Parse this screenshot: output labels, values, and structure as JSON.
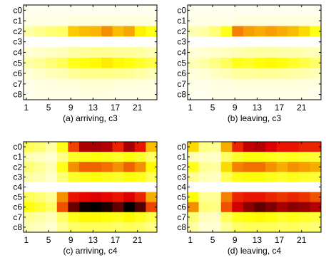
{
  "figure": {
    "colormap": "hot",
    "colormap_anchors": [
      "#000000",
      "#e60000",
      "#ffff00",
      "#ffffff"
    ]
  },
  "chart_data": [
    {
      "type": "heatmap",
      "title": "(a) arriving, c3",
      "rows": [
        "c0",
        "c1",
        "c2",
        "c3",
        "c4",
        "c5",
        "c6",
        "c7",
        "c8"
      ],
      "x_ticks": [
        "1",
        "5",
        "9",
        "13",
        "17",
        "21"
      ],
      "x_range": [
        1,
        24
      ],
      "values": [
        [
          0.02,
          0.02,
          0.02,
          0.02,
          0.02,
          0.02,
          0.02,
          0.02,
          0.02,
          0.02,
          0.02,
          0.02,
          0.02,
          0.02,
          0.02,
          0.02,
          0.02,
          0.02,
          0.02,
          0.02,
          0.02,
          0.02,
          0.02,
          0.02
        ],
        [
          0.03,
          0.03,
          0.03,
          0.03,
          0.03,
          0.03,
          0.03,
          0.03,
          0.04,
          0.04,
          0.04,
          0.04,
          0.04,
          0.04,
          0.04,
          0.04,
          0.04,
          0.04,
          0.04,
          0.04,
          0.04,
          0.04,
          0.04,
          0.04
        ],
        [
          0.12,
          0.12,
          0.15,
          0.15,
          0.18,
          0.18,
          0.2,
          0.2,
          0.4,
          0.4,
          0.42,
          0.42,
          0.43,
          0.43,
          0.48,
          0.48,
          0.42,
          0.42,
          0.45,
          0.45,
          0.35,
          0.35,
          0.3,
          0.3
        ],
        [
          0.0,
          0.0,
          0.0,
          0.0,
          0.0,
          0.0,
          0.0,
          0.0,
          0.0,
          0.0,
          0.0,
          0.0,
          0.0,
          0.0,
          0.0,
          0.0,
          0.0,
          0.0,
          0.0,
          0.0,
          0.0,
          0.0,
          0.0,
          0.0
        ],
        [
          0.06,
          0.06,
          0.07,
          0.07,
          0.08,
          0.08,
          0.09,
          0.09,
          0.12,
          0.12,
          0.13,
          0.13,
          0.14,
          0.14,
          0.14,
          0.14,
          0.13,
          0.13,
          0.13,
          0.13,
          0.12,
          0.12,
          0.1,
          0.1
        ],
        [
          0.12,
          0.12,
          0.14,
          0.14,
          0.18,
          0.18,
          0.22,
          0.22,
          0.3,
          0.3,
          0.32,
          0.32,
          0.34,
          0.34,
          0.36,
          0.36,
          0.34,
          0.34,
          0.32,
          0.32,
          0.28,
          0.28,
          0.24,
          0.24
        ],
        [
          0.06,
          0.06,
          0.07,
          0.07,
          0.09,
          0.09,
          0.1,
          0.1,
          0.14,
          0.14,
          0.15,
          0.15,
          0.15,
          0.15,
          0.16,
          0.16,
          0.15,
          0.15,
          0.14,
          0.14,
          0.12,
          0.12,
          0.1,
          0.1
        ],
        [
          0.03,
          0.03,
          0.04,
          0.04,
          0.04,
          0.04,
          0.05,
          0.05,
          0.05,
          0.05,
          0.06,
          0.06,
          0.06,
          0.06,
          0.06,
          0.06,
          0.05,
          0.05,
          0.05,
          0.05,
          0.05,
          0.05,
          0.04,
          0.04
        ],
        [
          0.02,
          0.02,
          0.03,
          0.03,
          0.03,
          0.03,
          0.03,
          0.03,
          0.03,
          0.03,
          0.04,
          0.04,
          0.04,
          0.04,
          0.04,
          0.04,
          0.03,
          0.03,
          0.03,
          0.03,
          0.03,
          0.03,
          0.03,
          0.03
        ]
      ]
    },
    {
      "type": "heatmap",
      "title": "(b) leaving, c3",
      "rows": [
        "c0",
        "c1",
        "c2",
        "c3",
        "c4",
        "c5",
        "c6",
        "c7",
        "c8"
      ],
      "x_ticks": [
        "1",
        "5",
        "9",
        "13",
        "17",
        "21"
      ],
      "x_range": [
        1,
        24
      ],
      "values": [
        [
          0.02,
          0.02,
          0.02,
          0.02,
          0.02,
          0.02,
          0.02,
          0.02,
          0.02,
          0.02,
          0.02,
          0.02,
          0.02,
          0.02,
          0.02,
          0.02,
          0.02,
          0.02,
          0.02,
          0.02,
          0.02,
          0.02,
          0.02,
          0.02
        ],
        [
          0.03,
          0.03,
          0.03,
          0.03,
          0.03,
          0.03,
          0.03,
          0.03,
          0.04,
          0.04,
          0.04,
          0.04,
          0.04,
          0.04,
          0.04,
          0.04,
          0.04,
          0.04,
          0.04,
          0.04,
          0.04,
          0.04,
          0.04,
          0.04
        ],
        [
          0.1,
          0.1,
          0.12,
          0.12,
          0.18,
          0.18,
          0.3,
          0.3,
          0.5,
          0.5,
          0.46,
          0.46,
          0.44,
          0.44,
          0.46,
          0.46,
          0.44,
          0.44,
          0.42,
          0.42,
          0.38,
          0.38,
          0.3,
          0.3
        ],
        [
          0.0,
          0.0,
          0.0,
          0.0,
          0.0,
          0.0,
          0.0,
          0.0,
          0.0,
          0.0,
          0.0,
          0.0,
          0.0,
          0.0,
          0.0,
          0.0,
          0.0,
          0.0,
          0.0,
          0.0,
          0.0,
          0.0,
          0.0,
          0.0
        ],
        [
          0.05,
          0.05,
          0.06,
          0.06,
          0.07,
          0.07,
          0.08,
          0.08,
          0.1,
          0.1,
          0.11,
          0.11,
          0.12,
          0.12,
          0.12,
          0.12,
          0.11,
          0.11,
          0.11,
          0.11,
          0.1,
          0.1,
          0.09,
          0.09
        ],
        [
          0.1,
          0.1,
          0.12,
          0.12,
          0.16,
          0.16,
          0.22,
          0.22,
          0.3,
          0.3,
          0.28,
          0.28,
          0.32,
          0.32,
          0.34,
          0.34,
          0.32,
          0.32,
          0.28,
          0.28,
          0.24,
          0.24,
          0.2,
          0.2
        ],
        [
          0.05,
          0.05,
          0.06,
          0.06,
          0.08,
          0.08,
          0.1,
          0.1,
          0.13,
          0.13,
          0.13,
          0.13,
          0.14,
          0.14,
          0.14,
          0.14,
          0.13,
          0.13,
          0.12,
          0.12,
          0.11,
          0.11,
          0.09,
          0.09
        ],
        [
          0.03,
          0.03,
          0.03,
          0.03,
          0.04,
          0.04,
          0.04,
          0.04,
          0.05,
          0.05,
          0.05,
          0.05,
          0.05,
          0.05,
          0.05,
          0.05,
          0.05,
          0.05,
          0.05,
          0.05,
          0.04,
          0.04,
          0.04,
          0.04
        ],
        [
          0.02,
          0.02,
          0.02,
          0.02,
          0.03,
          0.03,
          0.03,
          0.03,
          0.03,
          0.03,
          0.03,
          0.03,
          0.03,
          0.03,
          0.03,
          0.03,
          0.03,
          0.03,
          0.03,
          0.03,
          0.03,
          0.03,
          0.02,
          0.02
        ]
      ]
    },
    {
      "type": "heatmap",
      "title": "(c) arriving, c4",
      "rows": [
        "c0",
        "c1",
        "c2",
        "c3",
        "c4",
        "c5",
        "c6",
        "c7",
        "c8"
      ],
      "x_ticks": [
        "1",
        "5",
        "9",
        "13",
        "17",
        "21"
      ],
      "x_range": [
        1,
        24
      ],
      "values": [
        [
          0.22,
          0.22,
          0.18,
          0.18,
          0.12,
          0.12,
          0.3,
          0.3,
          0.58,
          0.58,
          0.75,
          0.75,
          0.76,
          0.76,
          0.74,
          0.74,
          0.62,
          0.62,
          0.76,
          0.76,
          0.64,
          0.64,
          0.42,
          0.42
        ],
        [
          0.1,
          0.1,
          0.08,
          0.08,
          0.06,
          0.06,
          0.16,
          0.16,
          0.28,
          0.28,
          0.3,
          0.3,
          0.32,
          0.32,
          0.3,
          0.3,
          0.28,
          0.28,
          0.32,
          0.32,
          0.28,
          0.28,
          0.2,
          0.2
        ],
        [
          0.18,
          0.18,
          0.14,
          0.14,
          0.1,
          0.1,
          0.3,
          0.3,
          0.48,
          0.48,
          0.54,
          0.54,
          0.54,
          0.54,
          0.52,
          0.52,
          0.48,
          0.48,
          0.54,
          0.54,
          0.48,
          0.48,
          0.34,
          0.34
        ],
        [
          0.12,
          0.12,
          0.1,
          0.1,
          0.07,
          0.07,
          0.18,
          0.18,
          0.28,
          0.28,
          0.3,
          0.3,
          0.32,
          0.32,
          0.3,
          0.3,
          0.28,
          0.28,
          0.32,
          0.32,
          0.3,
          0.3,
          0.22,
          0.22
        ],
        [
          0.0,
          0.0,
          0.0,
          0.0,
          0.0,
          0.0,
          0.0,
          0.0,
          0.0,
          0.0,
          0.0,
          0.0,
          0.0,
          0.0,
          0.0,
          0.0,
          0.0,
          0.0,
          0.0,
          0.0,
          0.0,
          0.0,
          0.0,
          0.0
        ],
        [
          0.22,
          0.22,
          0.18,
          0.18,
          0.14,
          0.14,
          0.48,
          0.48,
          0.64,
          0.64,
          0.66,
          0.66,
          0.68,
          0.68,
          0.66,
          0.66,
          0.64,
          0.64,
          0.68,
          0.68,
          0.62,
          0.62,
          0.44,
          0.44
        ],
        [
          0.32,
          0.32,
          0.26,
          0.26,
          0.2,
          0.2,
          0.56,
          0.56,
          0.85,
          0.85,
          0.98,
          0.98,
          1.0,
          1.0,
          0.96,
          0.96,
          0.86,
          0.86,
          1.0,
          1.0,
          0.88,
          0.88,
          0.58,
          0.58
        ],
        [
          0.14,
          0.14,
          0.12,
          0.12,
          0.09,
          0.09,
          0.2,
          0.2,
          0.3,
          0.3,
          0.34,
          0.34,
          0.34,
          0.34,
          0.32,
          0.32,
          0.3,
          0.3,
          0.34,
          0.34,
          0.3,
          0.3,
          0.24,
          0.24
        ],
        [
          0.1,
          0.1,
          0.08,
          0.08,
          0.06,
          0.06,
          0.14,
          0.14,
          0.2,
          0.2,
          0.22,
          0.22,
          0.22,
          0.22,
          0.22,
          0.22,
          0.2,
          0.2,
          0.22,
          0.22,
          0.2,
          0.2,
          0.16,
          0.16
        ]
      ]
    },
    {
      "type": "heatmap",
      "title": "(d) leaving, c4",
      "rows": [
        "c0",
        "c1",
        "c2",
        "c3",
        "c4",
        "c5",
        "c6",
        "c7",
        "c8"
      ],
      "x_ticks": [
        "1",
        "5",
        "9",
        "13",
        "17",
        "21"
      ],
      "x_range": [
        1,
        24
      ],
      "values": [
        [
          0.38,
          0.38,
          0.16,
          0.16,
          0.14,
          0.14,
          0.44,
          0.44,
          0.62,
          0.62,
          0.72,
          0.72,
          0.74,
          0.74,
          0.68,
          0.68,
          0.64,
          0.64,
          0.64,
          0.64,
          0.62,
          0.62,
          0.62,
          0.62
        ],
        [
          0.1,
          0.1,
          0.08,
          0.08,
          0.07,
          0.07,
          0.2,
          0.2,
          0.28,
          0.28,
          0.32,
          0.32,
          0.32,
          0.32,
          0.3,
          0.3,
          0.28,
          0.28,
          0.3,
          0.3,
          0.28,
          0.28,
          0.26,
          0.26
        ],
        [
          0.3,
          0.3,
          0.14,
          0.14,
          0.12,
          0.12,
          0.38,
          0.38,
          0.5,
          0.5,
          0.52,
          0.52,
          0.52,
          0.52,
          0.48,
          0.48,
          0.44,
          0.44,
          0.48,
          0.48,
          0.46,
          0.46,
          0.44,
          0.44
        ],
        [
          0.14,
          0.14,
          0.09,
          0.09,
          0.08,
          0.08,
          0.22,
          0.22,
          0.3,
          0.3,
          0.32,
          0.32,
          0.32,
          0.32,
          0.3,
          0.3,
          0.28,
          0.28,
          0.3,
          0.3,
          0.28,
          0.28,
          0.26,
          0.26
        ],
        [
          0.0,
          0.0,
          0.0,
          0.0,
          0.0,
          0.0,
          0.0,
          0.0,
          0.0,
          0.0,
          0.0,
          0.0,
          0.0,
          0.0,
          0.0,
          0.0,
          0.0,
          0.0,
          0.0,
          0.0,
          0.0,
          0.0,
          0.0,
          0.0
        ],
        [
          0.32,
          0.32,
          0.14,
          0.14,
          0.14,
          0.14,
          0.5,
          0.5,
          0.62,
          0.62,
          0.64,
          0.64,
          0.64,
          0.64,
          0.62,
          0.62,
          0.6,
          0.6,
          0.62,
          0.62,
          0.6,
          0.6,
          0.56,
          0.56
        ],
        [
          0.48,
          0.48,
          0.18,
          0.18,
          0.16,
          0.16,
          0.56,
          0.56,
          0.7,
          0.7,
          0.8,
          0.8,
          0.86,
          0.86,
          0.82,
          0.82,
          0.76,
          0.76,
          0.8,
          0.8,
          0.78,
          0.78,
          0.74,
          0.74
        ],
        [
          0.18,
          0.18,
          0.09,
          0.09,
          0.08,
          0.08,
          0.22,
          0.22,
          0.3,
          0.3,
          0.32,
          0.32,
          0.34,
          0.34,
          0.32,
          0.32,
          0.28,
          0.28,
          0.3,
          0.3,
          0.28,
          0.28,
          0.26,
          0.26
        ],
        [
          0.12,
          0.12,
          0.06,
          0.06,
          0.06,
          0.06,
          0.14,
          0.14,
          0.2,
          0.2,
          0.22,
          0.22,
          0.22,
          0.22,
          0.22,
          0.22,
          0.2,
          0.2,
          0.22,
          0.22,
          0.2,
          0.2,
          0.18,
          0.18
        ]
      ]
    }
  ]
}
